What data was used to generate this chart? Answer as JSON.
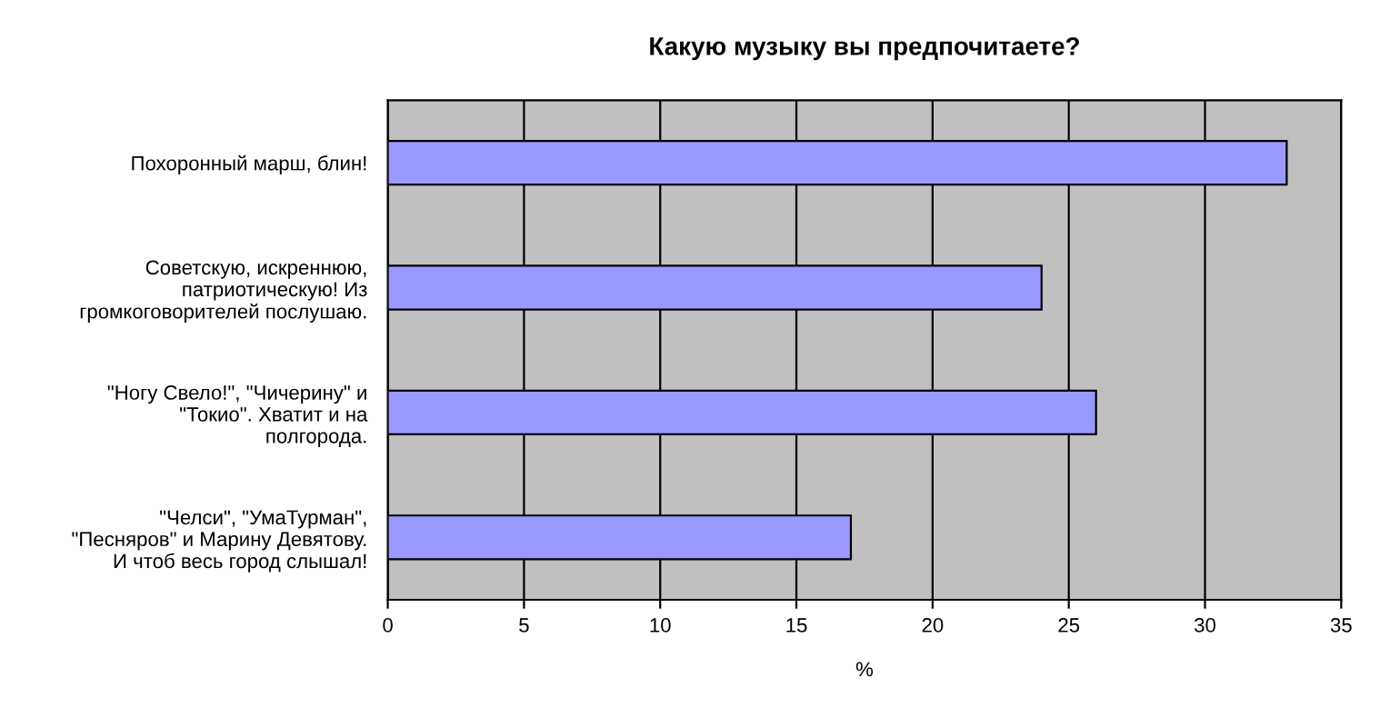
{
  "chart_data": {
    "type": "bar",
    "orientation": "horizontal",
    "title": "Какую музыку вы предпочитаете?",
    "xlabel": "%",
    "categories": [
      "Похоронный марш, блин!",
      "Советскую, искреннюю,\nпатриотическую! Из\nгромкоговорителей послушаю.",
      "\"Ногу Свело!\", \"Чичерину\" и\n\"Токио\". Хватит и на\nполгорода.",
      "\"Челси\", \"УмаТурман\",\n\"Песняров\" и Марину Девятову.\nИ чтоб весь город слышал!"
    ],
    "values": [
      33,
      24,
      26,
      17
    ],
    "color": "#9999ff",
    "xlim": [
      0,
      35
    ],
    "xticks": [
      0,
      5,
      10,
      15,
      20,
      25,
      30,
      35
    ],
    "grid": "x",
    "legend": false
  }
}
